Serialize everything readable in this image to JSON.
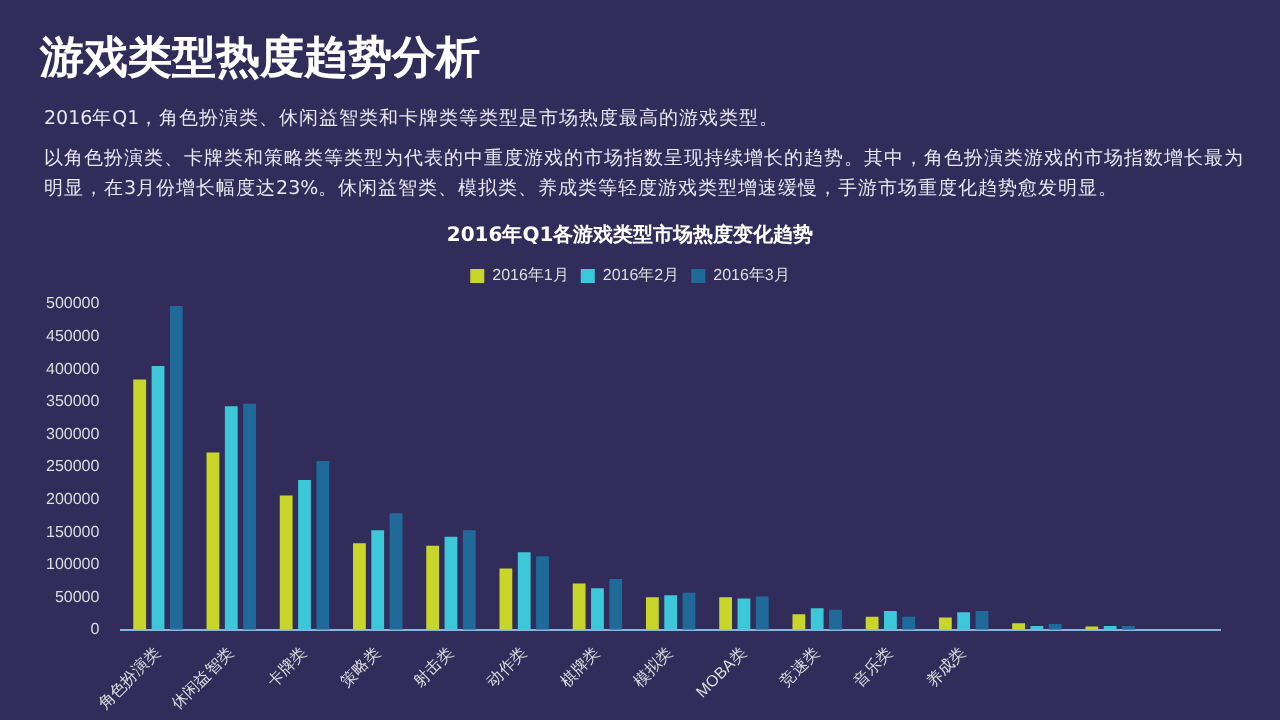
{
  "chart_data": {
    "type": "bar",
    "title": "游戏类型热度趋势分析",
    "subtitle": "2016年Q1各游戏类型市场热度变化趋势",
    "annotations": [
      "2016年Q1，角色扮演类、休闲益智类和卡牌类等类型是市场热度最高的游戏类型。",
      "以角色扮演类、卡牌类和策略类等类型为代表的中重度游戏的市场指数呈现持续增长的趋势。其中，角色扮演类游戏的市场指数增长最为明显，在3月份增长幅度达23%。休闲益智类、模拟类、养成类等轻度游戏类型增速缓慢，手游市场重度化趋势愈发明显。"
    ],
    "categories": [
      "角色扮演类",
      "休闲益智类",
      "卡牌类",
      "策略类",
      "射击类",
      "动作类",
      "棋牌类",
      "模拟类",
      "MOBA类",
      "竞速类",
      "音乐类",
      "养成类",
      null,
      null,
      null
    ],
    "series": [
      {
        "name": "2016年1月",
        "color": "#c8d62a",
        "values": [
          384000,
          272000,
          206000,
          133000,
          129000,
          94000,
          71000,
          50000,
          50000,
          24000,
          20000,
          19000,
          10000,
          5000,
          null
        ]
      },
      {
        "name": "2016年2月",
        "color": "#3cc8d8",
        "values": [
          405000,
          343000,
          230000,
          153000,
          143000,
          119000,
          64000,
          53000,
          48000,
          33000,
          29000,
          27000,
          6000,
          6000,
          null
        ]
      },
      {
        "name": "2016年3月",
        "color": "#1f6a98",
        "values": [
          497000,
          347000,
          259000,
          179000,
          153000,
          113000,
          78000,
          57000,
          51000,
          31000,
          20000,
          29000,
          9000,
          6000,
          null
        ]
      }
    ],
    "ylim": [
      0,
      500000
    ],
    "yticks": [
      0,
      50000,
      100000,
      150000,
      200000,
      250000,
      300000,
      350000,
      400000,
      450000,
      500000
    ],
    "grid": false,
    "legend": "top"
  }
}
